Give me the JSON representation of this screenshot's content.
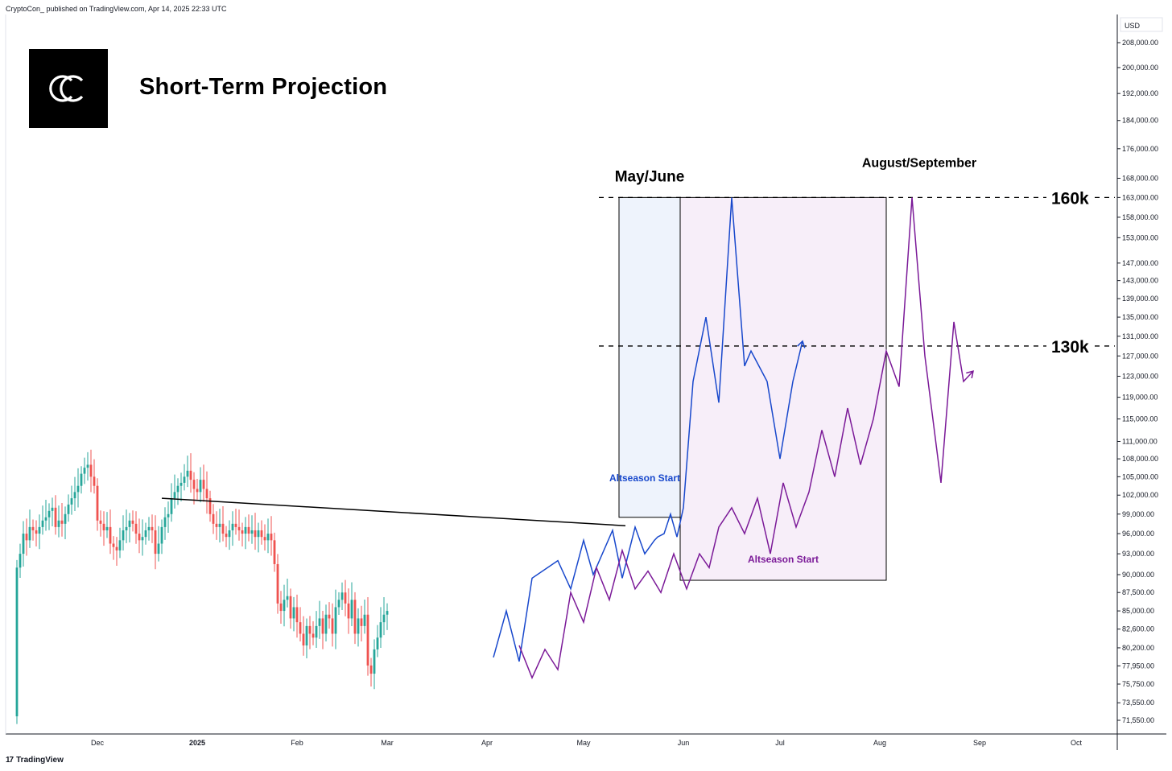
{
  "header": {
    "attribution": "CryptoCon_ published on TradingView.com, Apr 14, 2025 22:33 UTC"
  },
  "logo": {
    "mark": "CC",
    "label": "CryptoCon logo"
  },
  "title": "Short-Term Projection",
  "footer": {
    "brand": "TradingView",
    "icon": "tradingview-logo-icon"
  },
  "colors": {
    "up_candle": "#26a69a",
    "down_candle": "#ef5350",
    "blue_path": "#1848cc",
    "purple_path": "#7b1a98",
    "blue_box_fill": "#eef3fc",
    "purple_box_fill": "#f7eef9"
  },
  "chart_data": {
    "type": "candlestick",
    "price_axis": {
      "currency": "USD",
      "scale": "log",
      "ticks": [
        "208,000.00",
        "200,000.00",
        "192,000.00",
        "184,000.00",
        "176,000.00",
        "168,000.00",
        "163,000.00",
        "158,000.00",
        "153,000.00",
        "147,000.00",
        "143,000.00",
        "139,000.00",
        "135,000.00",
        "131,000.00",
        "127,000.00",
        "123,000.00",
        "119,000.00",
        "115,000.00",
        "111,000.00",
        "108,000.00",
        "105,000.00",
        "102,000.00",
        "99,000.00",
        "96,000.00",
        "93,000.00",
        "90,000.00",
        "87,500.00",
        "85,000.00",
        "82,600.00",
        "80,200.00",
        "77,950.00",
        "75,750.00",
        "73,550.00",
        "71,550.00"
      ],
      "tick_values": [
        208000,
        200000,
        192000,
        184000,
        176000,
        168000,
        163000,
        158000,
        153000,
        147000,
        143000,
        139000,
        135000,
        131000,
        127000,
        123000,
        119000,
        115000,
        111000,
        108000,
        105000,
        102000,
        99000,
        96000,
        93000,
        90000,
        87500,
        85000,
        82600,
        80200,
        77950,
        75750,
        73550,
        71550
      ]
    },
    "time_axis": {
      "labels": [
        {
          "label": "Dec",
          "day": 0
        },
        {
          "label": "2025",
          "day": 31
        },
        {
          "label": "Feb",
          "day": 62
        },
        {
          "label": "Mar",
          "day": 90
        },
        {
          "label": "Apr",
          "day": 121
        },
        {
          "label": "May",
          "day": 151
        },
        {
          "label": "Jun",
          "day": 182
        },
        {
          "label": "Jul",
          "day": 212
        },
        {
          "label": "Aug",
          "day": 243
        },
        {
          "label": "Sep",
          "day": 274
        },
        {
          "label": "Oct",
          "day": 304
        }
      ]
    },
    "candles_close": [
      91000,
      93000,
      96000,
      95000,
      97000,
      96500,
      96000,
      97000,
      98000,
      98500,
      99500,
      100000,
      97000,
      98000,
      97500,
      99000,
      100500,
      101500,
      102500,
      103500,
      105500,
      106500,
      107000,
      105000,
      103500,
      98000,
      97500,
      96500,
      97000,
      94500,
      94000,
      93500,
      95000,
      96500,
      97000,
      98000,
      97500,
      96000,
      95000,
      95500,
      96500,
      97000,
      96500,
      93000,
      94500,
      97000,
      98500,
      99000,
      101500,
      102500,
      103500,
      104000,
      105000,
      106000,
      104500,
      103000,
      102500,
      104500,
      103000,
      101500,
      99000,
      97500,
      97000,
      97500,
      96000,
      95500,
      96500,
      97500,
      97000,
      96500,
      96000,
      97000,
      96000,
      96500,
      95500,
      96500,
      95500,
      95000,
      96000,
      95000,
      91500,
      86000,
      85000,
      86500,
      87000,
      84000,
      85500,
      83500,
      82000,
      80500,
      83000,
      82000,
      81500,
      83000,
      84000,
      82000,
      84500,
      84000,
      82000,
      85500,
      86500,
      87500,
      86000,
      84000,
      86500,
      82000,
      84000,
      83000,
      84500,
      78000,
      77000,
      80000,
      81500,
      83500,
      84500,
      85000
    ],
    "projections": [
      {
        "name": "blue-path",
        "points": [
          [
            123,
            79000
          ],
          [
            127,
            85000
          ],
          [
            131,
            78500
          ],
          [
            135,
            89500
          ],
          [
            143,
            92000
          ],
          [
            147,
            88000
          ],
          [
            151,
            95000
          ],
          [
            154,
            90000
          ],
          [
            160,
            96500
          ],
          [
            163,
            89500
          ],
          [
            167,
            97000
          ],
          [
            170,
            93000
          ],
          [
            173,
            95000
          ],
          [
            174,
            95500
          ],
          [
            176,
            96000
          ],
          [
            178,
            99000
          ],
          [
            180,
            95500
          ],
          [
            182,
            100000
          ],
          [
            185,
            122000
          ],
          [
            189,
            135000
          ],
          [
            193,
            118000
          ],
          [
            197,
            163000
          ],
          [
            201,
            125000
          ],
          [
            203,
            128000
          ],
          [
            208,
            122000
          ],
          [
            212,
            108000
          ],
          [
            216,
            122000
          ],
          [
            219,
            130000
          ]
        ]
      },
      {
        "name": "purple-path",
        "points": [
          [
            131,
            80500
          ],
          [
            135,
            76500
          ],
          [
            139,
            80000
          ],
          [
            143,
            77500
          ],
          [
            147,
            87500
          ],
          [
            151,
            83500
          ],
          [
            155,
            91000
          ],
          [
            159,
            86500
          ],
          [
            163,
            93500
          ],
          [
            167,
            88000
          ],
          [
            171,
            90500
          ],
          [
            175,
            87500
          ],
          [
            179,
            93000
          ],
          [
            183,
            88000
          ],
          [
            187,
            93000
          ],
          [
            190,
            91000
          ],
          [
            193,
            97000
          ],
          [
            197,
            100000
          ],
          [
            201,
            96000
          ],
          [
            205,
            101500
          ],
          [
            209,
            93000
          ],
          [
            213,
            104000
          ],
          [
            217,
            97000
          ],
          [
            221,
            102500
          ],
          [
            225,
            113000
          ],
          [
            229,
            105000
          ],
          [
            233,
            117000
          ],
          [
            237,
            107000
          ],
          [
            241,
            115000
          ],
          [
            245,
            128000
          ],
          [
            249,
            121000
          ],
          [
            253,
            163000
          ],
          [
            257,
            127000
          ],
          [
            262,
            104000
          ],
          [
            266,
            134000
          ],
          [
            269,
            122000
          ],
          [
            272,
            124000
          ]
        ]
      }
    ],
    "trendline": {
      "from": [
        20,
        101500
      ],
      "to": [
        164,
        97200
      ]
    },
    "horizontal_levels": [
      {
        "label": "160k",
        "value": 163000
      },
      {
        "label": "130k",
        "value": 129000
      }
    ],
    "boxes": [
      {
        "name": "may-june-box",
        "label": "May/June",
        "start_day": 162,
        "end_day": 181,
        "top": 163000,
        "bottom": 98500,
        "inner_label": "Altseason Start"
      },
      {
        "name": "aug-sep-box",
        "label": "August/September",
        "start_day": 181,
        "end_day": 245,
        "top": 163000,
        "bottom": 89200,
        "inner_label": "Altseason Start"
      }
    ]
  }
}
